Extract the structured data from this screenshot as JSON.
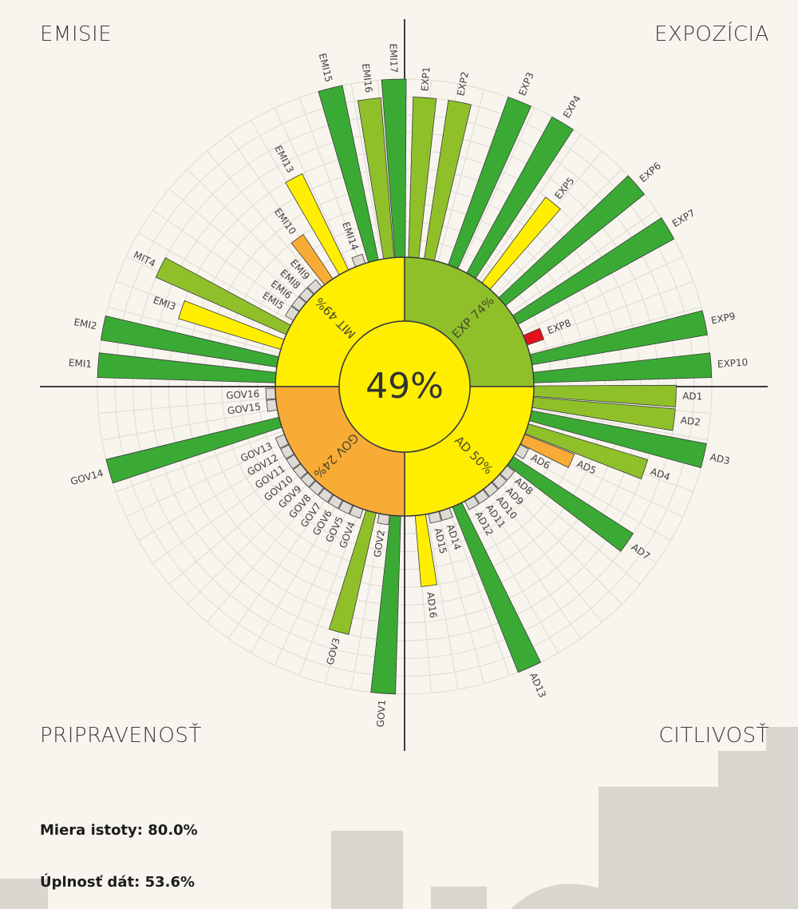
{
  "quadrants": {
    "emisie": "EMISIE",
    "expozicia": "EXPOZÍCIA",
    "pripravenost": "PRIPRAVENOSŤ",
    "citlivost": "CITLIVOSŤ"
  },
  "stats": {
    "istota_label": "Miera istoty:",
    "istota_value": "80.0%",
    "uplnost_label": "Úplnosť dát:",
    "uplnost_value": "53.6%"
  },
  "colors": {
    "dark_green": "#3aaa35",
    "light_green": "#8fc02a",
    "yellow": "#ffee00",
    "orange": "#f8ab35",
    "red": "#e3111a",
    "empty": "#dedbd4"
  },
  "chart_data": {
    "type": "radial-bar",
    "center_value": "49%",
    "scale_levels": 10,
    "sections": [
      {
        "label": "MIT 49%",
        "color": "yellow"
      },
      {
        "label": "EXP 74%",
        "color": "light_green"
      },
      {
        "label": "AD 50%",
        "color": "yellow"
      },
      {
        "label": "GOV 24%",
        "color": "orange"
      }
    ],
    "bars": [
      {
        "label": "EXP1",
        "angle": 86,
        "value": 9,
        "color": "light_green"
      },
      {
        "label": "EXP2",
        "angle": 79,
        "value": 9,
        "color": "light_green"
      },
      {
        "label": "EXP3",
        "angle": 68,
        "value": 10,
        "color": "dark_green"
      },
      {
        "label": "EXP4",
        "angle": 59,
        "value": 10,
        "color": "dark_green"
      },
      {
        "label": "EXP5",
        "angle": 51,
        "value": 6,
        "color": "yellow"
      },
      {
        "label": "EXP6",
        "angle": 41,
        "value": 10,
        "color": "dark_green"
      },
      {
        "label": "EXP7",
        "angle": 31,
        "value": 10,
        "color": "dark_green"
      },
      {
        "label": "EXP8",
        "angle": 21,
        "value": 1,
        "color": "red"
      },
      {
        "label": "EXP9",
        "angle": 12,
        "value": 10,
        "color": "dark_green"
      },
      {
        "label": "EXP10",
        "angle": 4,
        "value": 10,
        "color": "dark_green"
      },
      {
        "label": "AD1",
        "angle": -2,
        "value": 8,
        "color": "light_green"
      },
      {
        "label": "AD2",
        "angle": -7,
        "value": 8,
        "color": "light_green"
      },
      {
        "label": "AD3",
        "angle": -13,
        "value": 10,
        "color": "dark_green"
      },
      {
        "label": "AD4",
        "angle": -19,
        "value": 7,
        "color": "light_green"
      },
      {
        "label": "AD5",
        "angle": -24,
        "value": 3,
        "color": "orange"
      },
      {
        "label": "AD6",
        "angle": -29,
        "value": 0,
        "color": "empty"
      },
      {
        "label": "AD7",
        "angle": -35,
        "value": 8,
        "color": "dark_green"
      },
      {
        "label": "AD8",
        "angle": -40,
        "value": 0,
        "color": "empty"
      },
      {
        "label": "AD9",
        "angle": -45,
        "value": 0,
        "color": "empty"
      },
      {
        "label": "AD10",
        "angle": -50,
        "value": 0,
        "color": "empty"
      },
      {
        "label": "AD11",
        "angle": -55,
        "value": 0,
        "color": "empty"
      },
      {
        "label": "AD12",
        "angle": -60,
        "value": 0,
        "color": "empty"
      },
      {
        "label": "AD13",
        "angle": -66,
        "value": 10,
        "color": "dark_green"
      },
      {
        "label": "AD14",
        "angle": -72,
        "value": 0,
        "color": "empty"
      },
      {
        "label": "AD15",
        "angle": -77,
        "value": 0,
        "color": "empty"
      },
      {
        "label": "AD16",
        "angle": -83,
        "value": 4,
        "color": "yellow"
      },
      {
        "label": "GOV1",
        "angle": -94,
        "value": 10,
        "color": "dark_green"
      },
      {
        "label": "GOV2",
        "angle": -99,
        "value": 0,
        "color": "empty"
      },
      {
        "label": "GOV3",
        "angle": -105,
        "value": 7,
        "color": "light_green"
      },
      {
        "label": "GOV4",
        "angle": -111,
        "value": 0,
        "color": "empty"
      },
      {
        "label": "GOV5",
        "angle": -116,
        "value": 0,
        "color": "empty"
      },
      {
        "label": "GOV6",
        "angle": -121,
        "value": 0,
        "color": "empty"
      },
      {
        "label": "GOV7",
        "angle": -126,
        "value": 0,
        "color": "empty"
      },
      {
        "label": "GOV8",
        "angle": -131,
        "value": 0,
        "color": "empty"
      },
      {
        "label": "GOV9",
        "angle": -136,
        "value": 0,
        "color": "empty"
      },
      {
        "label": "GOV10",
        "angle": -141,
        "value": 0,
        "color": "empty"
      },
      {
        "label": "GOV11",
        "angle": -146,
        "value": 0,
        "color": "empty"
      },
      {
        "label": "GOV12",
        "angle": -151,
        "value": 0,
        "color": "empty"
      },
      {
        "label": "GOV13",
        "angle": -156,
        "value": 0,
        "color": "empty"
      },
      {
        "label": "GOV14",
        "angle": -164,
        "value": 10,
        "color": "dark_green"
      },
      {
        "label": "GOV15",
        "angle": -172,
        "value": 0,
        "color": "empty"
      },
      {
        "label": "GOV16",
        "angle": -177,
        "value": 0,
        "color": "empty"
      },
      {
        "label": "EMI1",
        "angle": 176,
        "value": 10,
        "color": "dark_green"
      },
      {
        "label": "EMI2",
        "angle": 169,
        "value": 10,
        "color": "dark_green"
      },
      {
        "label": "EMI3",
        "angle": 161,
        "value": 6,
        "color": "yellow"
      },
      {
        "label": "MIT4",
        "angle": 154,
        "value": 8,
        "color": "light_green"
      },
      {
        "label": "EMI5",
        "angle": 147,
        "value": 0,
        "color": "empty"
      },
      {
        "label": "EMI6",
        "angle": 142,
        "value": 0,
        "color": "empty"
      },
      {
        "label": "EMI8",
        "angle": 137,
        "value": 0,
        "color": "empty"
      },
      {
        "label": "EMI9",
        "angle": 132,
        "value": 0,
        "color": "empty"
      },
      {
        "label": "EMI10",
        "angle": 126,
        "value": 3,
        "color": "orange"
      },
      {
        "label": "EMI13",
        "angle": 118,
        "value": 6,
        "color": "yellow"
      },
      {
        "label": "EMI14",
        "angle": 110,
        "value": 0,
        "color": "empty"
      },
      {
        "label": "EMI15",
        "angle": 104,
        "value": 10,
        "color": "dark_green"
      },
      {
        "label": "EMI16",
        "angle": 97,
        "value": 9,
        "color": "light_green"
      },
      {
        "label": "EMI17",
        "angle": 92,
        "value": 10,
        "color": "dark_green"
      }
    ]
  }
}
